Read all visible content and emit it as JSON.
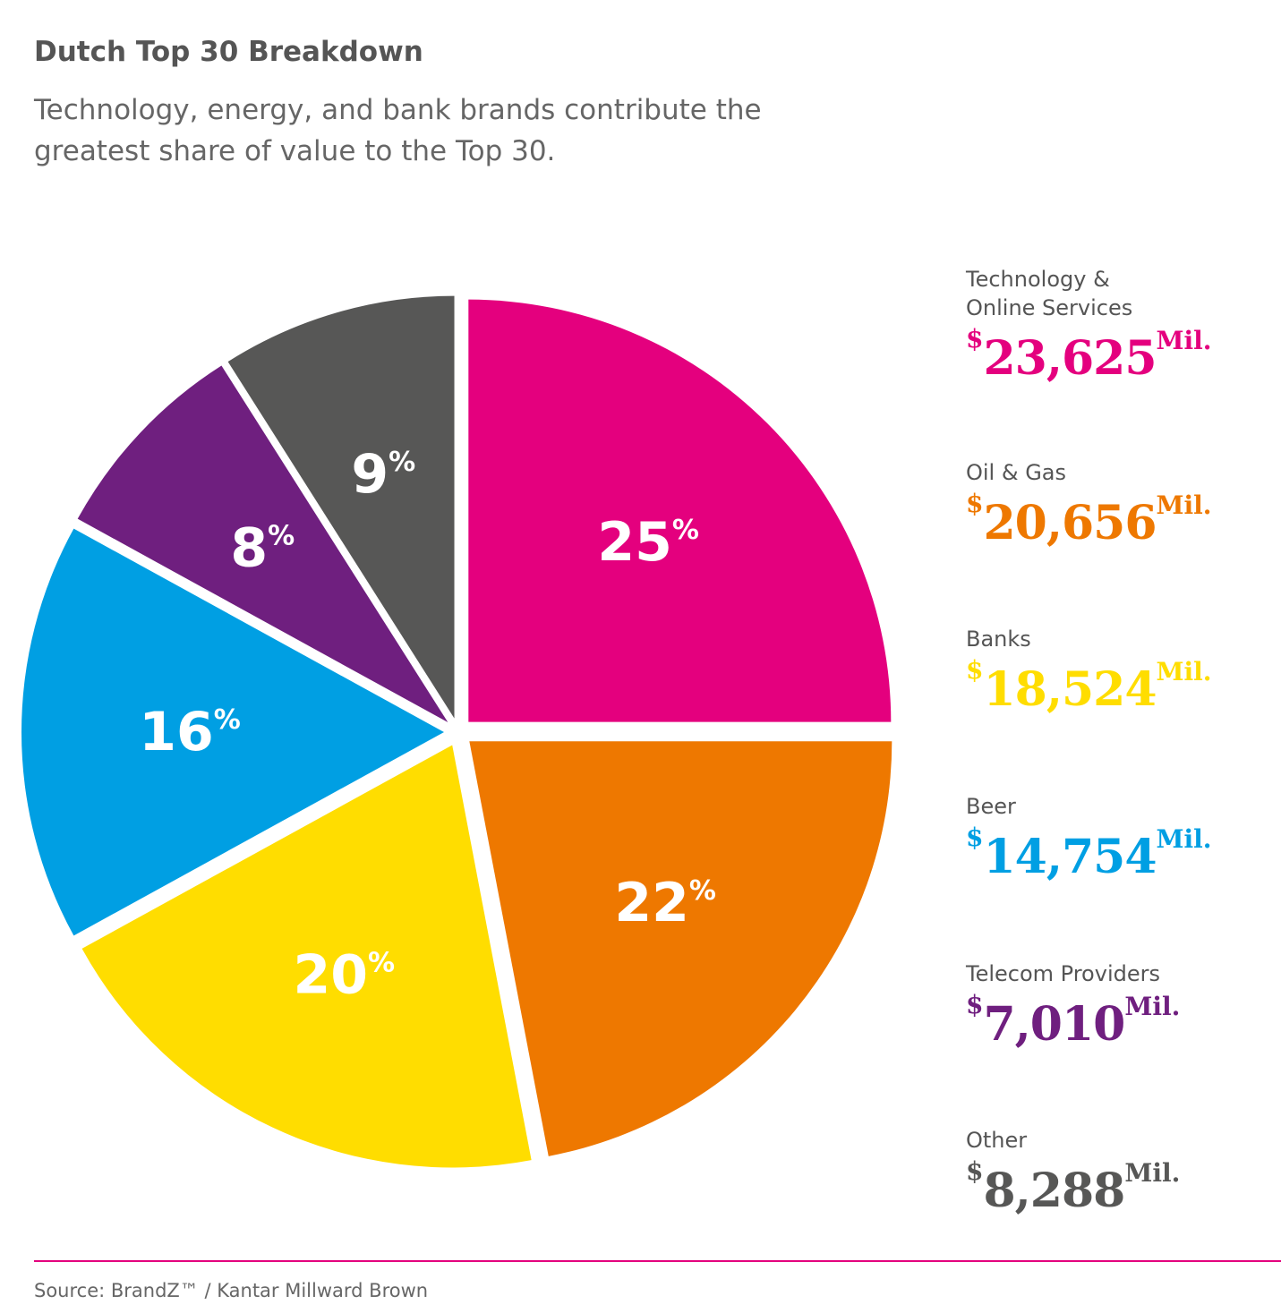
{
  "header": {
    "title": "Dutch Top 30 Breakdown",
    "subtitle": "Technology, energy, and bank brands contribute the greatest share of value to the Top 30."
  },
  "chart_data": {
    "type": "pie",
    "categories": [
      "Technology & Online Services",
      "Oil & Gas",
      "Banks",
      "Beer",
      "Telecom Providers",
      "Other"
    ],
    "values": [
      25,
      22,
      20,
      16,
      8,
      9
    ],
    "value_labels": [
      "25%",
      "22%",
      "20%",
      "16%",
      "8%",
      "9%"
    ],
    "brand_value_mil": [
      "23,625",
      "20,656",
      "18,524",
      "14,754",
      "7,010",
      "8,288"
    ],
    "currency_symbol": "$",
    "unit": "Mil.",
    "colors": [
      "#e4007e",
      "#ee7800",
      "#ffdd00",
      "#009fe3",
      "#6f1f7f",
      "#575756"
    ],
    "exploded": true,
    "legend_position": "right"
  },
  "footer": {
    "source": "Source: BrandZ™ / Kantar Millward Brown"
  }
}
